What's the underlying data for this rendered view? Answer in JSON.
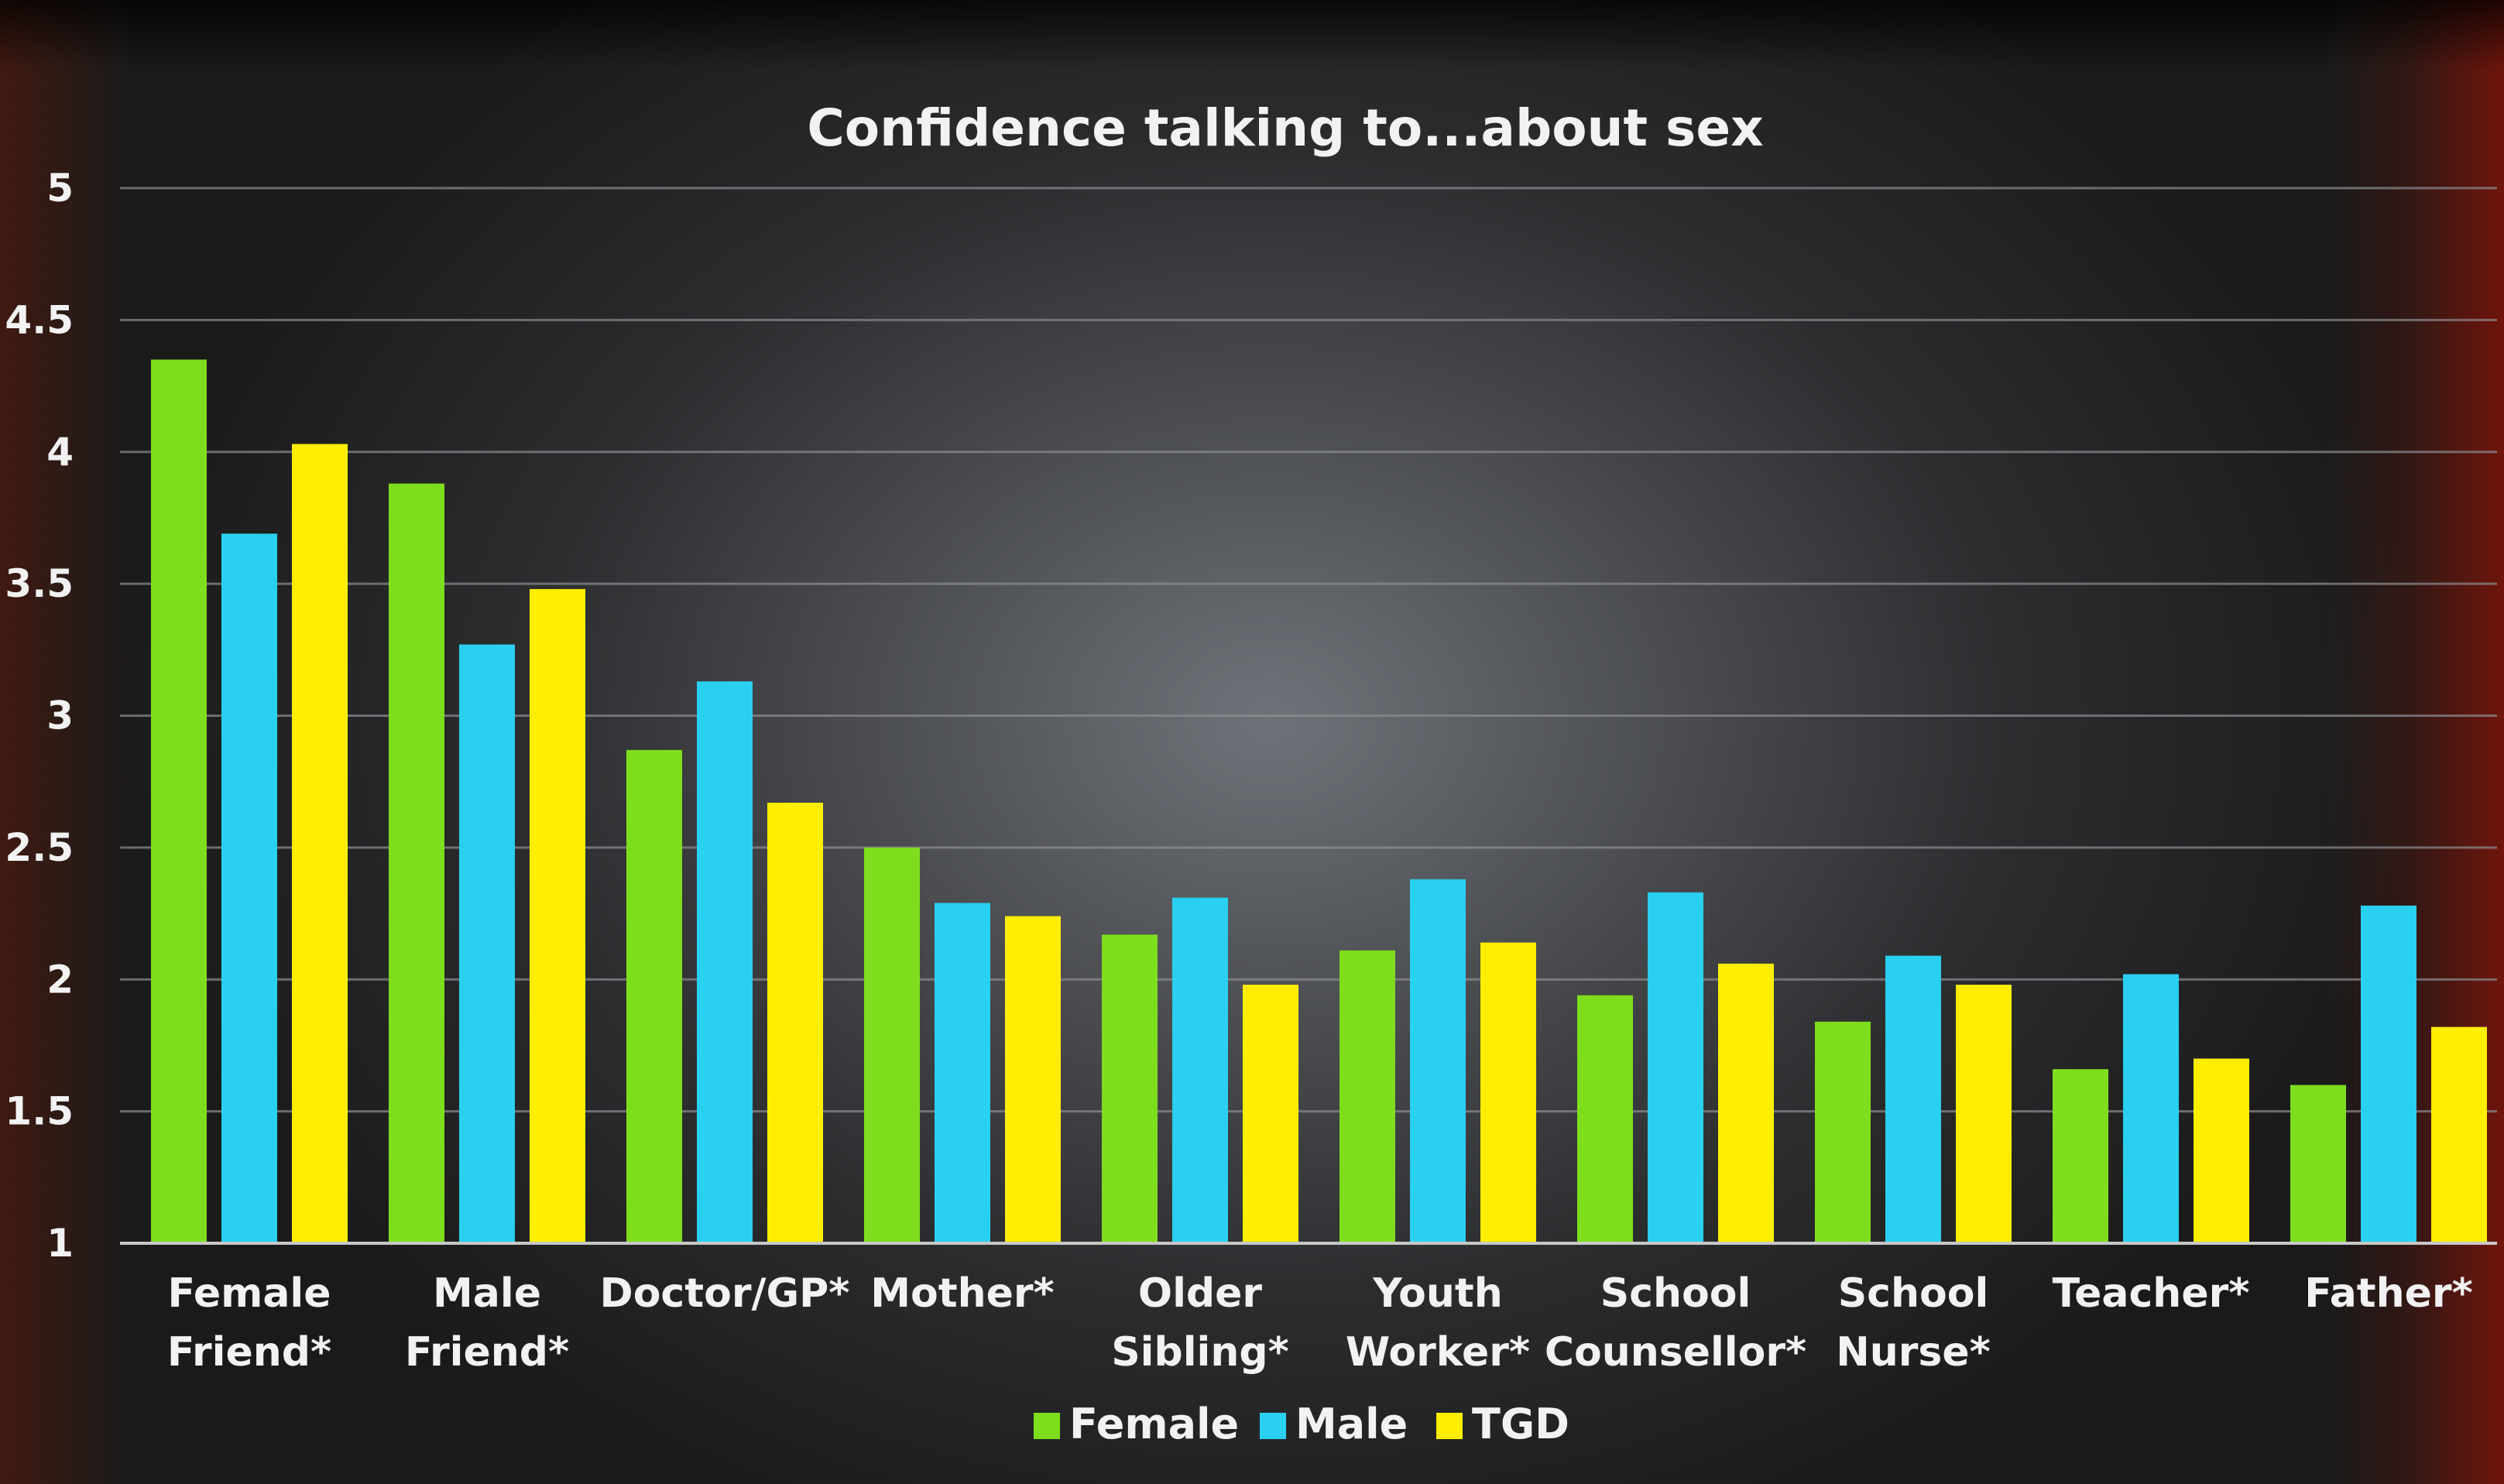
{
  "chart_data": {
    "type": "bar",
    "title": "Confidence talking to...about sex",
    "xlabel": "",
    "ylabel": "",
    "ylim": [
      1,
      5
    ],
    "yticks": [
      "1",
      "1.5",
      "2",
      "2.5",
      "3",
      "3.5",
      "4",
      "4.5",
      "5"
    ],
    "grid": true,
    "legend_position": "bottom",
    "categories": [
      [
        "Female",
        "Friend*"
      ],
      [
        "Male",
        "Friend*"
      ],
      [
        "Doctor/GP*"
      ],
      [
        "Mother*"
      ],
      [
        "Older",
        "Sibling*"
      ],
      [
        "Youth",
        "Worker*"
      ],
      [
        "School",
        "Counsellor*"
      ],
      [
        "School",
        "Nurse*"
      ],
      [
        "Teacher*"
      ],
      [
        "Father*"
      ]
    ],
    "series": [
      {
        "name": "Female",
        "color": "#7ede1d",
        "values": [
          4.35,
          3.88,
          2.87,
          2.5,
          2.17,
          2.11,
          1.94,
          1.84,
          1.66,
          1.6
        ]
      },
      {
        "name": "Male",
        "color": "#2ad0f0",
        "values": [
          3.69,
          3.27,
          3.13,
          2.29,
          2.31,
          2.38,
          2.33,
          2.09,
          2.02,
          2.28
        ]
      },
      {
        "name": "TGD",
        "color": "#ffee00",
        "values": [
          4.03,
          3.48,
          2.67,
          2.24,
          1.98,
          2.14,
          2.06,
          1.98,
          1.7,
          1.82
        ]
      }
    ]
  }
}
